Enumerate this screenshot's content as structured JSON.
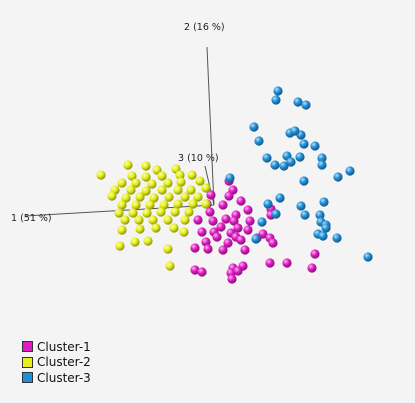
{
  "chart_data": {
    "type": "scatter",
    "projection": "3d",
    "axes": [
      {
        "label": "1 (51 %)"
      },
      {
        "label": "2 (16 %)"
      },
      {
        "label": "3 (10 %)"
      }
    ],
    "grid": false,
    "legend_position": "bottom-left",
    "series": [
      {
        "name": "Cluster-1",
        "color": "#e01bc4",
        "points": [
          [
            229,
            181
          ],
          [
            233,
            190
          ],
          [
            211,
            195
          ],
          [
            229,
            196
          ],
          [
            207,
            204
          ],
          [
            223,
            205
          ],
          [
            241,
            201
          ],
          [
            210,
            212
          ],
          [
            248,
            210
          ],
          [
            271,
            209
          ],
          [
            236,
            215
          ],
          [
            226,
            219
          ],
          [
            271,
            215
          ],
          [
            198,
            220
          ],
          [
            213,
            221
          ],
          [
            234,
            221
          ],
          [
            250,
            221
          ],
          [
            221,
            227
          ],
          [
            238,
            228
          ],
          [
            202,
            232
          ],
          [
            214,
            232
          ],
          [
            231,
            233
          ],
          [
            248,
            230
          ],
          [
            263,
            234
          ],
          [
            217,
            237
          ],
          [
            236,
            237
          ],
          [
            257,
            238
          ],
          [
            270,
            238
          ],
          [
            206,
            242
          ],
          [
            228,
            243
          ],
          [
            241,
            240
          ],
          [
            195,
            248
          ],
          [
            208,
            249
          ],
          [
            273,
            243
          ],
          [
            223,
            250
          ],
          [
            245,
            250
          ],
          [
            315,
            254
          ],
          [
            270,
            263
          ],
          [
            287,
            263
          ],
          [
            233,
            268
          ],
          [
            243,
            266
          ],
          [
            195,
            270
          ],
          [
            202,
            272
          ],
          [
            231,
            273
          ],
          [
            238,
            271
          ],
          [
            312,
            268
          ],
          [
            232,
            279
          ]
        ]
      },
      {
        "name": "Cluster-2",
        "color": "#e6f018",
        "points": [
          [
            128,
            165
          ],
          [
            146,
            166
          ],
          [
            157,
            170
          ],
          [
            176,
            169
          ],
          [
            101,
            175
          ],
          [
            132,
            176
          ],
          [
            146,
            177
          ],
          [
            162,
            176
          ],
          [
            180,
            175
          ],
          [
            192,
            175
          ],
          [
            122,
            183
          ],
          [
            136,
            183
          ],
          [
            152,
            184
          ],
          [
            168,
            183
          ],
          [
            181,
            182
          ],
          [
            200,
            181
          ],
          [
            115,
            190
          ],
          [
            131,
            190
          ],
          [
            146,
            191
          ],
          [
            162,
            190
          ],
          [
            178,
            190
          ],
          [
            191,
            190
          ],
          [
            206,
            188
          ],
          [
            112,
            196
          ],
          [
            126,
            198
          ],
          [
            140,
            197
          ],
          [
            154,
            198
          ],
          [
            169,
            197
          ],
          [
            185,
            197
          ],
          [
            198,
            197
          ],
          [
            122,
            205
          ],
          [
            136,
            205
          ],
          [
            150,
            205
          ],
          [
            164,
            205
          ],
          [
            178,
            204
          ],
          [
            193,
            204
          ],
          [
            206,
            204
          ],
          [
            119,
            213
          ],
          [
            133,
            213
          ],
          [
            147,
            213
          ],
          [
            161,
            212
          ],
          [
            175,
            212
          ],
          [
            189,
            212
          ],
          [
            125,
            220
          ],
          [
            139,
            220
          ],
          [
            153,
            220
          ],
          [
            168,
            220
          ],
          [
            185,
            220
          ],
          [
            156,
            228
          ],
          [
            174,
            228
          ],
          [
            184,
            232
          ],
          [
            122,
            230
          ],
          [
            140,
            229
          ],
          [
            135,
            242
          ],
          [
            148,
            241
          ],
          [
            120,
            246
          ],
          [
            168,
            249
          ],
          [
            170,
            266
          ]
        ]
      },
      {
        "name": "Cluster-3",
        "color": "#1e8fd8",
        "points": [
          [
            278,
            91
          ],
          [
            276,
            100
          ],
          [
            298,
            102
          ],
          [
            306,
            105
          ],
          [
            254,
            127
          ],
          [
            290,
            133
          ],
          [
            301,
            135
          ],
          [
            295,
            131
          ],
          [
            259,
            141
          ],
          [
            304,
            144
          ],
          [
            315,
            146
          ],
          [
            267,
            158
          ],
          [
            322,
            158
          ],
          [
            287,
            156
          ],
          [
            291,
            162
          ],
          [
            300,
            157
          ],
          [
            284,
            166
          ],
          [
            322,
            165
          ],
          [
            275,
            165
          ],
          [
            230,
            178
          ],
          [
            338,
            177
          ],
          [
            304,
            181
          ],
          [
            350,
            171
          ],
          [
            280,
            198
          ],
          [
            268,
            204
          ],
          [
            324,
            202
          ],
          [
            301,
            206
          ],
          [
            276,
            214
          ],
          [
            305,
            215
          ],
          [
            320,
            215
          ],
          [
            321,
            222
          ],
          [
            262,
            222
          ],
          [
            326,
            225
          ],
          [
            318,
            234
          ],
          [
            256,
            239
          ],
          [
            326,
            228
          ],
          [
            337,
            238
          ],
          [
            323,
            236
          ],
          [
            368,
            257
          ]
        ]
      }
    ]
  }
}
